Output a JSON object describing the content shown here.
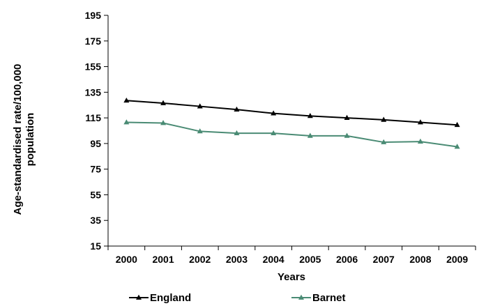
{
  "chart_data": {
    "type": "line",
    "title": "",
    "xlabel": "Years",
    "ylabel_lines": [
      "Age-standardised rate/100,000",
      "population"
    ],
    "x": [
      "2000",
      "2001",
      "2002",
      "2003",
      "2004",
      "2005",
      "2006",
      "2007",
      "2008",
      "2009"
    ],
    "ylim": [
      15,
      195
    ],
    "yticks": [
      15,
      35,
      55,
      75,
      95,
      115,
      135,
      155,
      175,
      195
    ],
    "grid": false,
    "legend_position": "bottom",
    "series": [
      {
        "name": "England",
        "color": "#000000",
        "marker": "triangle",
        "values": [
          128.5,
          126.5,
          124,
          121.5,
          118.5,
          116.5,
          115,
          113.5,
          111.5,
          109.5
        ]
      },
      {
        "name": "Barnet",
        "color": "#4a8b74",
        "marker": "triangle",
        "values": [
          111.5,
          111,
          104.5,
          103,
          103,
          101,
          101,
          96,
          96.5,
          92.5
        ]
      }
    ]
  }
}
